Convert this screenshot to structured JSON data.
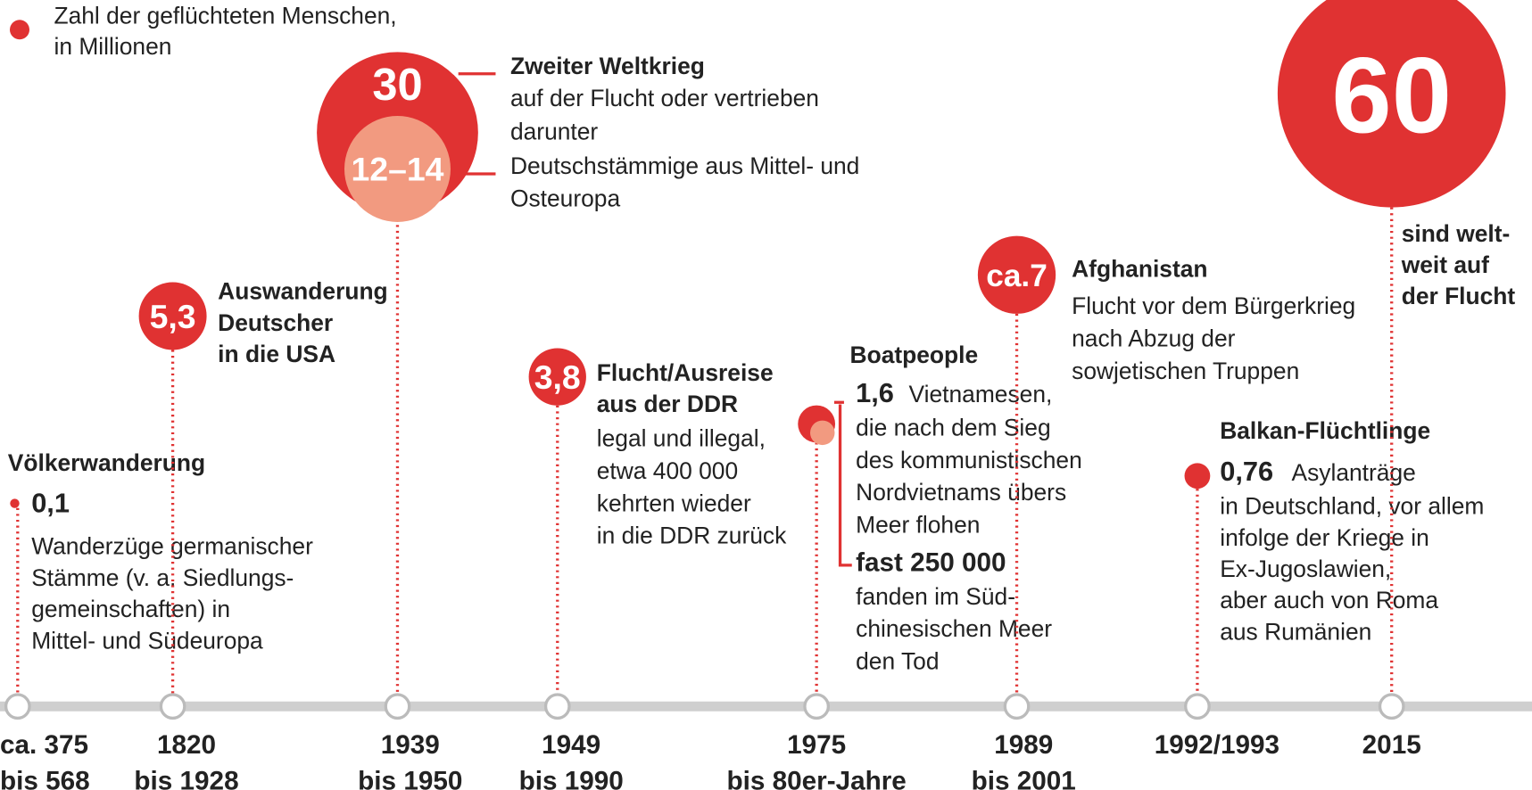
{
  "legend": [
    "Zahl der geflüchteten Menschen,",
    "in Millionen"
  ],
  "events": [
    {
      "period": [
        "ca. 375",
        "bis 568"
      ],
      "title": [
        "Völkerwanderung"
      ],
      "value": 0.1,
      "value_label": "0,1",
      "description": [
        "Wanderzüge germanischer",
        "Stämme (v. a. Siedlungs-",
        "gemeinschaften) in",
        "Mittel- und Südeuropa"
      ]
    },
    {
      "period": [
        "1820",
        "bis 1928"
      ],
      "value": 5.3,
      "value_label": "5,3",
      "title": [
        "Auswanderung",
        "Deutscher",
        "in die USA"
      ]
    },
    {
      "period": [
        "1939",
        "bis 1950"
      ],
      "value": 30,
      "value_label": "30",
      "title": [
        "Zweiter Weltkrieg"
      ],
      "description": [
        "auf der Flucht oder vertrieben",
        "darunter"
      ],
      "sub": {
        "values": [
          12,
          14
        ],
        "value_label": "12–14",
        "description": [
          "Deutschstämmige aus Mittel- und",
          "Osteuropa"
        ]
      }
    },
    {
      "period": [
        "1949",
        "bis 1990"
      ],
      "value": 3.8,
      "value_label": "3,8",
      "title": [
        "Flucht/Ausreise",
        "aus der DDR"
      ],
      "description": [
        "legal und illegal,",
        "etwa 400 000",
        "kehrten wieder",
        "in die DDR zurück"
      ]
    },
    {
      "period": [
        "1975",
        "bis  80er-Jahre"
      ],
      "title": [
        "Boatpeople"
      ],
      "value": 1.6,
      "value_label": "1,6",
      "value_text": "Vietnamesen,",
      "description": [
        "die nach dem Sieg",
        "des kommunistischen",
        "Nordvietnams übers",
        "Meer flohen"
      ],
      "sub": {
        "value": 0.25,
        "value_label": "fast 250 000",
        "description": [
          "fanden im Süd-",
          "chinesischen Meer",
          "den Tod"
        ]
      }
    },
    {
      "period": [
        "1989",
        "bis 2001"
      ],
      "value": 7,
      "value_label": "ca.7",
      "title": [
        "Afghanistan"
      ],
      "description": [
        "Flucht vor dem Bürgerkrieg",
        "nach Abzug der",
        "sowjetischen Truppen"
      ]
    },
    {
      "period": [
        "1992/1993"
      ],
      "title": [
        "Balkan-Flüchtlinge"
      ],
      "value": 0.76,
      "value_label": "0,76",
      "value_text": "Asylanträge",
      "description": [
        "in Deutschland, vor allem",
        "infolge der Kriege in",
        "Ex-Jugoslawien,",
        "aber auch von Roma",
        "aus Rumänien"
      ]
    },
    {
      "period": [
        "2015"
      ],
      "value": 60,
      "value_label": "60",
      "title": [
        "sind welt-",
        "weit auf",
        "der Flucht"
      ]
    }
  ]
}
